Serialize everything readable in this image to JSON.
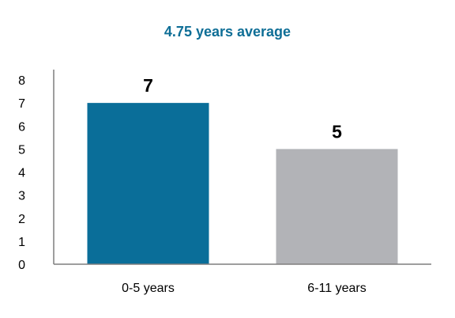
{
  "chart_data": {
    "type": "bar",
    "title": "4.75 years average",
    "categories": [
      "0-5 years",
      "6-11 years"
    ],
    "values": [
      7,
      5
    ],
    "data_labels": [
      "7",
      "5"
    ],
    "bar_colors": [
      "#0a6e99",
      "#b2b3b7"
    ],
    "title_color": "#0e6e96",
    "axis_color": "#7f7f7f",
    "ylim": [
      0,
      8
    ],
    "y_ticks": [
      "0",
      "1",
      "2",
      "3",
      "4",
      "5",
      "6",
      "7",
      "8"
    ],
    "grid": false,
    "legend": "none",
    "xlabel": "",
    "ylabel": ""
  }
}
